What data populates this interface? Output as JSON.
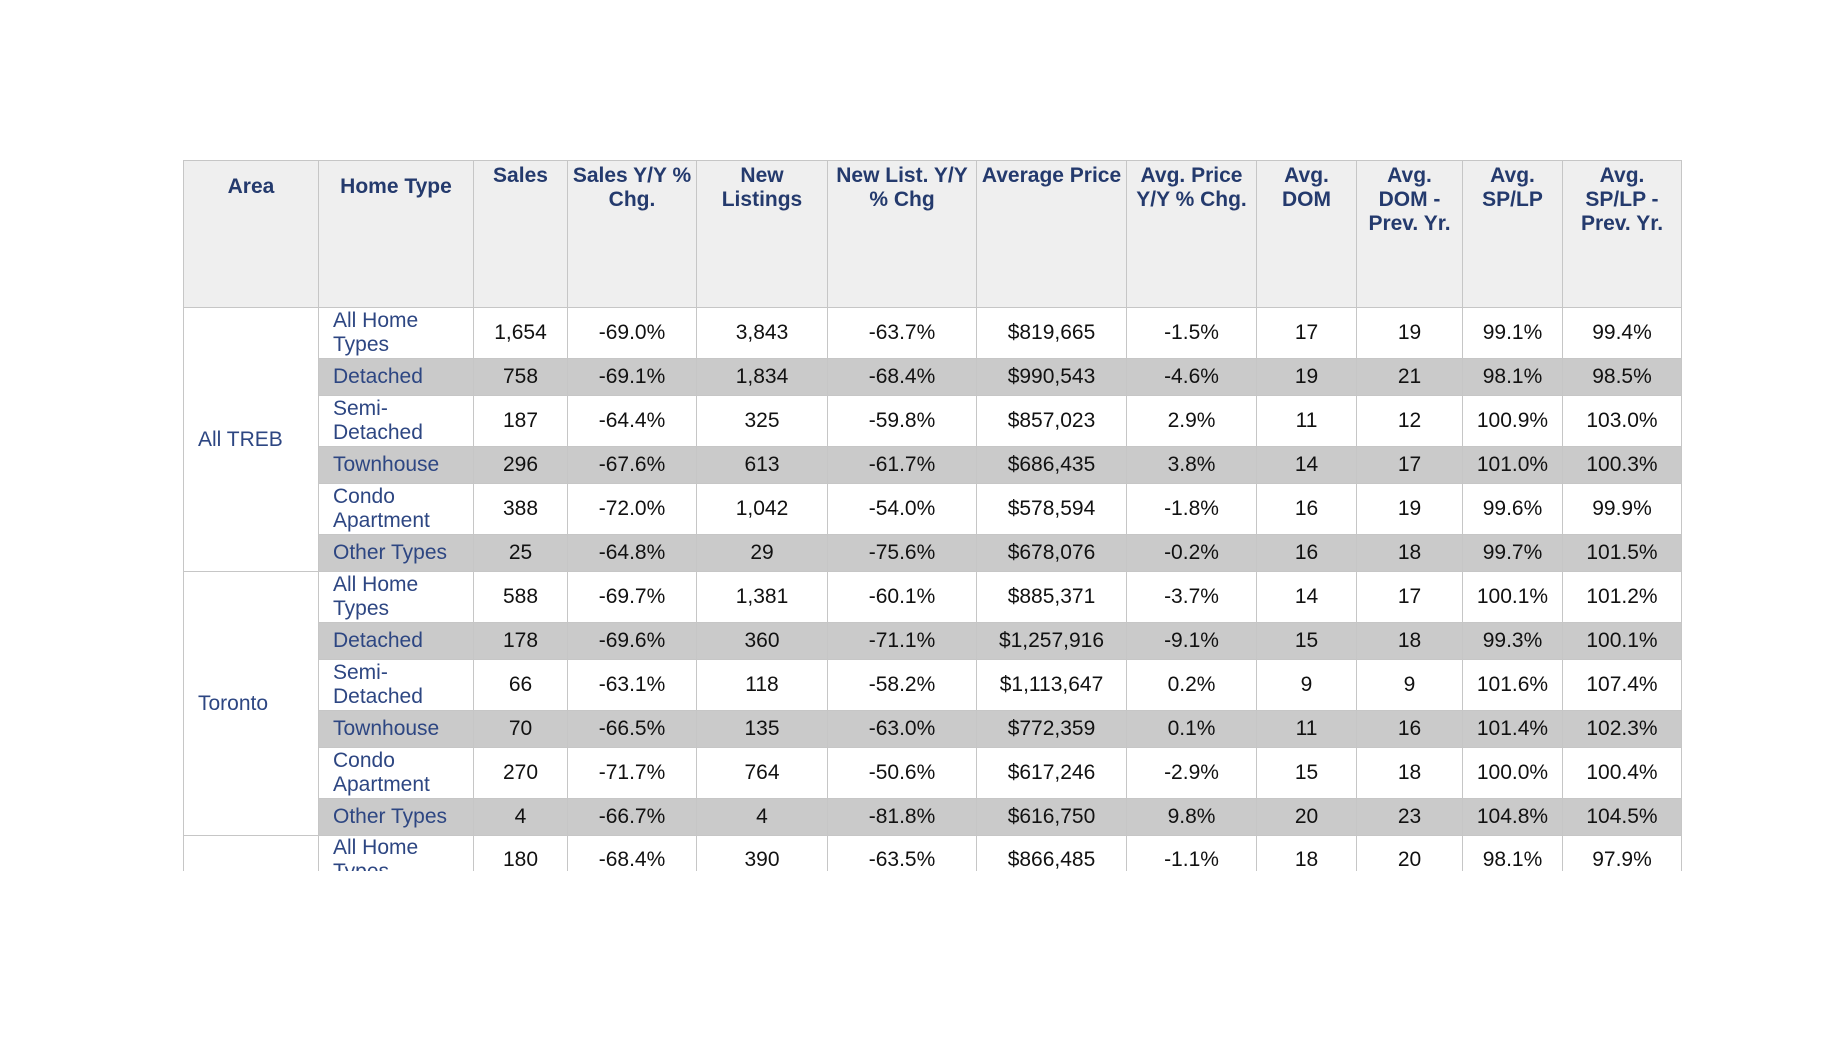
{
  "headers": [
    "Area",
    "Home Type",
    "Sales",
    "Sales Y/Y % Chg.",
    "New Listings",
    "New List. Y/Y % Chg",
    "Average Price",
    "Avg. Price Y/Y % Chg.",
    "Avg. DOM",
    "Avg. DOM - Prev. Yr.",
    "Avg. SP/LP",
    "Avg. SP/LP - Prev. Yr."
  ],
  "groups": [
    {
      "area": "All TREB",
      "rows": [
        [
          "All Home Types",
          "1,654",
          "-69.0%",
          "3,843",
          "-63.7%",
          "$819,665",
          "-1.5%",
          "17",
          "19",
          "99.1%",
          "99.4%"
        ],
        [
          "Detached",
          "758",
          "-69.1%",
          "1,834",
          "-68.4%",
          "$990,543",
          "-4.6%",
          "19",
          "21",
          "98.1%",
          "98.5%"
        ],
        [
          "Semi-Detached",
          "187",
          "-64.4%",
          "325",
          "-59.8%",
          "$857,023",
          "2.9%",
          "11",
          "12",
          "100.9%",
          "103.0%"
        ],
        [
          "Townhouse",
          "296",
          "-67.6%",
          "613",
          "-61.7%",
          "$686,435",
          "3.8%",
          "14",
          "17",
          "101.0%",
          "100.3%"
        ],
        [
          "Condo Apartment",
          "388",
          "-72.0%",
          "1,042",
          "-54.0%",
          "$578,594",
          "-1.8%",
          "16",
          "19",
          "99.6%",
          "99.9%"
        ],
        [
          "Other Types",
          "25",
          "-64.8%",
          "29",
          "-75.6%",
          "$678,076",
          "-0.2%",
          "16",
          "18",
          "99.7%",
          "101.5%"
        ]
      ]
    },
    {
      "area": "Toronto",
      "rows": [
        [
          "All Home Types",
          "588",
          "-69.7%",
          "1,381",
          "-60.1%",
          "$885,371",
          "-3.7%",
          "14",
          "17",
          "100.1%",
          "101.2%"
        ],
        [
          "Detached",
          "178",
          "-69.6%",
          "360",
          "-71.1%",
          "$1,257,916",
          "-9.1%",
          "15",
          "18",
          "99.3%",
          "100.1%"
        ],
        [
          "Semi-Detached",
          "66",
          "-63.1%",
          "118",
          "-58.2%",
          "$1,113,647",
          "0.2%",
          "9",
          "9",
          "101.6%",
          "107.4%"
        ],
        [
          "Townhouse",
          "70",
          "-66.5%",
          "135",
          "-63.0%",
          "$772,359",
          "0.1%",
          "11",
          "16",
          "101.4%",
          "102.3%"
        ],
        [
          "Condo Apartment",
          "270",
          "-71.7%",
          "764",
          "-50.6%",
          "$617,246",
          "-2.9%",
          "15",
          "18",
          "100.0%",
          "100.4%"
        ],
        [
          "Other Types",
          "4",
          "-66.7%",
          "4",
          "-81.8%",
          "$616,750",
          "9.8%",
          "20",
          "23",
          "104.8%",
          "104.5%"
        ]
      ]
    },
    {
      "area": "",
      "rows": [
        [
          "All Home Types",
          "180",
          "-68.4%",
          "390",
          "-63.5%",
          "$866,485",
          "-1.1%",
          "18",
          "20",
          "98.1%",
          "97.9%"
        ]
      ]
    }
  ]
}
